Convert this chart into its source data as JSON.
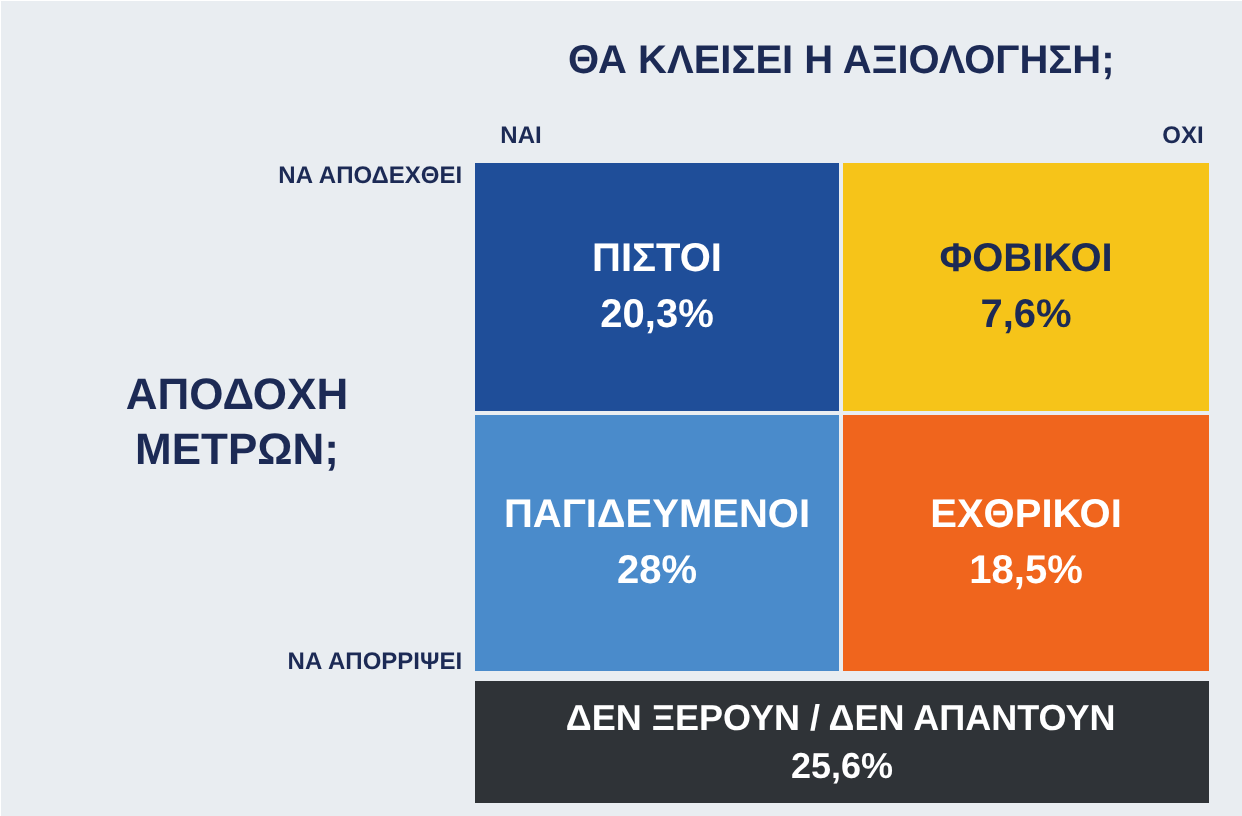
{
  "chart_data": {
    "type": "other",
    "title": "ΘΑ ΚΛΕΙΣΕΙ Η ΑΞΙΟΛΟΓΗΣΗ;",
    "ylabel": "ΑΠΟΔΟΧΗ ΜΕΤΡΩΝ;",
    "categories": [
      "ΠΙΣΤΟΙ",
      "ΦΟΒΙΚΟΙ",
      "ΠΑΓΙΔΕΥΜΕΝΟΙ",
      "ΕΧΘΡΙΚΟΙ",
      "ΔΕΝ ΞΕΡΟΥΝ / ΔΕΝ ΑΠΑΝΤΟΥΝ"
    ],
    "values": [
      20.3,
      7.6,
      28,
      18.5,
      25.6
    ],
    "value_labels": [
      "20,3%",
      "7,6%",
      "28%",
      "18,5%",
      "25,6%"
    ],
    "colors": [
      "#1f4e99",
      "#f6c419",
      "#4a8bcb",
      "#f0651d",
      "#2f3337"
    ],
    "annotations": [
      "ΝΑΙ",
      "ΟΧΙ",
      "ΝΑ ΑΠΟΔΕΧΘΕΙ",
      "ΝΑ ΑΠΟΡΡΙΨΕΙ"
    ]
  }
}
